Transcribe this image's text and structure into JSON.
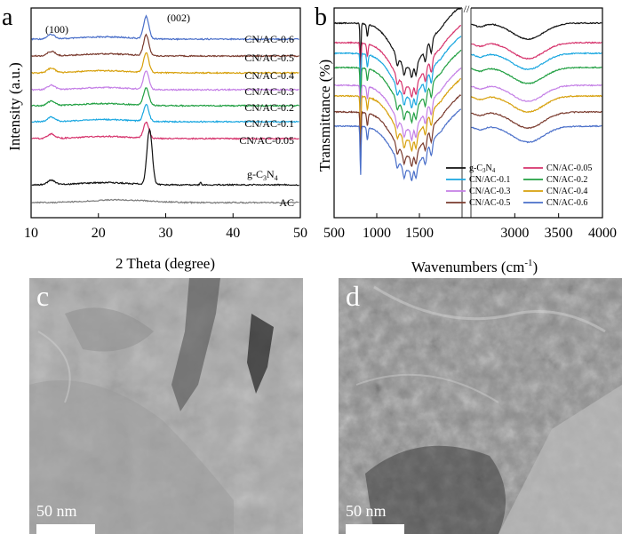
{
  "panel_a": {
    "letter": "a",
    "xlabel": "2 Theta (degree)",
    "ylabel": "Intensity (a.u.)",
    "xticks": [
      "10",
      "20",
      "30",
      "40",
      "50"
    ],
    "peak_labels": [
      "(100)",
      "(002)"
    ],
    "series_labels": [
      "CN/AC-0.6",
      "CN/AC-0.5",
      "CN/AC-0.4",
      "CN/AC-0.3",
      "CN/AC-0.2",
      "CN/AC-0.1",
      "CN/AC-0.05",
      "AC"
    ],
    "gcn_label_main": "g-C",
    "gcn_label_sub3": "3",
    "gcn_label_N": "N",
    "gcn_label_sub4": "4"
  },
  "panel_b": {
    "letter": "b",
    "xlabel_main": "Wavenumbers (cm",
    "xlabel_sup": "-1",
    "xlabel_end": ")",
    "ylabel": "Transmittance (%)",
    "xticks": [
      "500",
      "1000",
      "1500",
      "3000",
      "3500",
      "4000"
    ],
    "break_mark": "//",
    "legend_gcn_main": "g-C",
    "legend_gcn_sub3": "3",
    "legend_gcn_N": "N",
    "legend_gcn_sub4": "4",
    "legend_entries": [
      "CN/AC-0.05",
      "CN/AC-0.1",
      "CN/AC-0.2",
      "CN/AC-0.3",
      "CN/AC-0.4",
      "CN/AC-0.5",
      "CN/AC-0.6"
    ]
  },
  "panel_c": {
    "letter": "c",
    "scale": "50 nm"
  },
  "panel_d": {
    "letter": "d",
    "scale": "50 nm"
  },
  "colors": {
    "gcn": "#111111",
    "cnac005": "#d6336c",
    "cnac01": "#1aa7e0",
    "cnac02": "#22a043",
    "cnac03": "#c47fe6",
    "cnac04": "#d7a00b",
    "cnac05": "#7a3b2e",
    "cnac06": "#4a6fc9",
    "ac": "#7b7b7b"
  },
  "chart_data": [
    {
      "type": "line",
      "title": "",
      "xlabel": "2 Theta (degree)",
      "ylabel": "Intensity (a.u.)",
      "xlim": [
        10,
        50
      ],
      "grid": false,
      "series": [
        {
          "name": "CN/AC-0.6",
          "peaks_2theta": [
            13.0,
            27.1
          ]
        },
        {
          "name": "CN/AC-0.5",
          "peaks_2theta": [
            13.0,
            27.1
          ]
        },
        {
          "name": "CN/AC-0.4",
          "peaks_2theta": [
            13.0,
            27.1
          ]
        },
        {
          "name": "CN/AC-0.3",
          "peaks_2theta": [
            13.0,
            27.1
          ]
        },
        {
          "name": "CN/AC-0.2",
          "peaks_2theta": [
            13.0,
            27.1
          ]
        },
        {
          "name": "CN/AC-0.1",
          "peaks_2theta": [
            13.0,
            27.1
          ]
        },
        {
          "name": "CN/AC-0.05",
          "peaks_2theta": [
            13.0,
            27.1
          ]
        },
        {
          "name": "g-C3N4",
          "peaks_2theta": [
            13.0,
            27.6
          ]
        },
        {
          "name": "AC",
          "peaks_2theta": [
            23.0
          ]
        }
      ]
    },
    {
      "type": "line",
      "title": "",
      "xlabel": "Wavenumbers (cm-1)",
      "ylabel": "Transmittance (%)",
      "xlim": [
        500,
        4000
      ],
      "x_axis_break": [
        2000,
        2500
      ],
      "grid": false,
      "legend_position": "bottom",
      "series": [
        {
          "name": "g-C3N4",
          "bands_cm-1": [
            810,
            1240,
            1320,
            1410,
            1570,
            1640,
            3150
          ]
        },
        {
          "name": "CN/AC-0.05",
          "bands_cm-1": [
            810,
            1240,
            1320,
            1410,
            1570,
            1640,
            3150
          ]
        },
        {
          "name": "CN/AC-0.1",
          "bands_cm-1": [
            810,
            1240,
            1320,
            1410,
            1570,
            1640,
            3150
          ]
        },
        {
          "name": "CN/AC-0.2",
          "bands_cm-1": [
            810,
            1240,
            1320,
            1410,
            1570,
            1640,
            3150
          ]
        },
        {
          "name": "CN/AC-0.3",
          "bands_cm-1": [
            810,
            1240,
            1320,
            1410,
            1570,
            1640,
            3150
          ]
        },
        {
          "name": "CN/AC-0.4",
          "bands_cm-1": [
            810,
            1240,
            1320,
            1410,
            1570,
            1640,
            3150
          ]
        },
        {
          "name": "CN/AC-0.5",
          "bands_cm-1": [
            810,
            1240,
            1320,
            1410,
            1570,
            1640,
            3150
          ]
        },
        {
          "name": "CN/AC-0.6",
          "bands_cm-1": [
            810,
            1240,
            1320,
            1410,
            1570,
            1640,
            3150
          ]
        }
      ]
    }
  ]
}
